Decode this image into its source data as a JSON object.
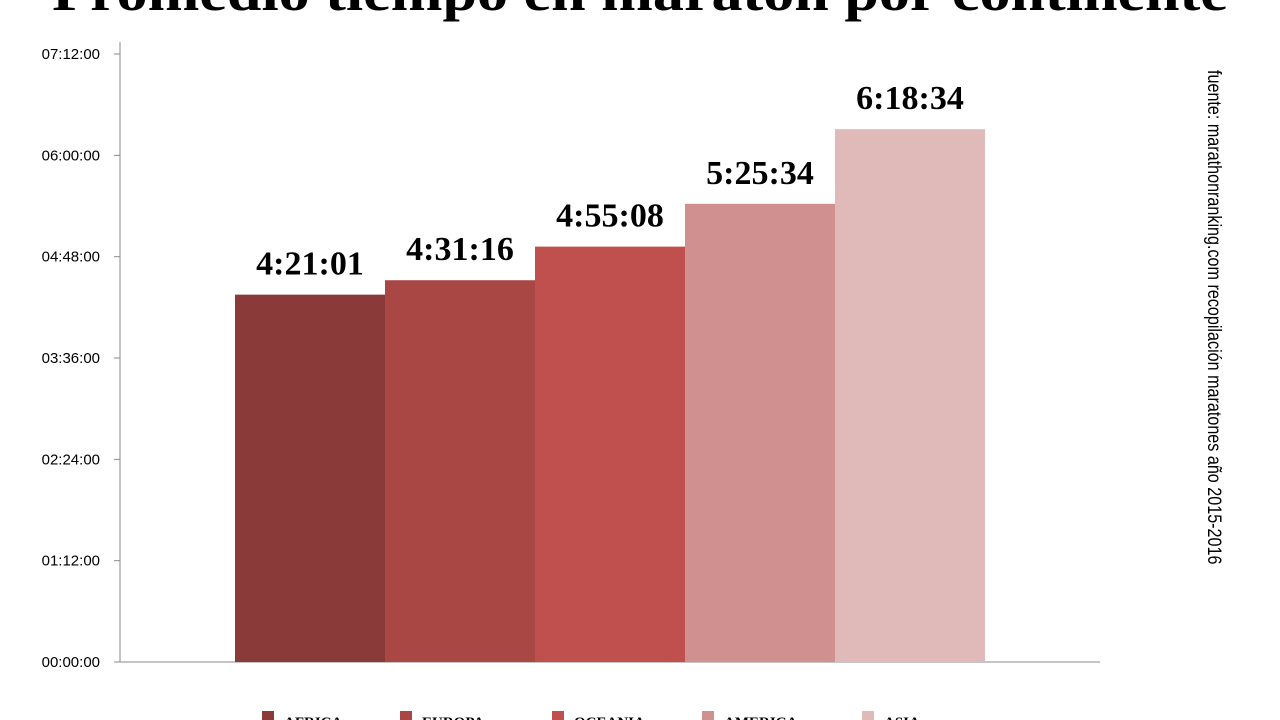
{
  "chart_data": {
    "type": "bar",
    "title": "Promedio tiempo en maraton por continente",
    "source": "fuente: marathonranking.com recopilación maratones año 2015-2016",
    "categories": [
      "AFRICA",
      "EUROPA",
      "OCEANIA",
      "AMERICA",
      "ASIA"
    ],
    "values": [
      15661,
      16276,
      17708,
      19534,
      22714
    ],
    "value_labels": [
      "4:21:01",
      "4:31:16",
      "4:55:08",
      "5:25:34",
      "6:18:34"
    ],
    "colors": [
      "#8b3a3a",
      "#a94744",
      "#c0504d",
      "#d09090",
      "#e0b9b9"
    ],
    "ylim": [
      0,
      25920
    ],
    "yticks": [
      {
        "value": 0,
        "label": "00:00:00"
      },
      {
        "value": 4320,
        "label": "01:12:00"
      },
      {
        "value": 8640,
        "label": "02:24:00"
      },
      {
        "value": 12960,
        "label": "03:36:00"
      },
      {
        "value": 17280,
        "label": "04:48:00"
      },
      {
        "value": 21600,
        "label": "06:00:00"
      },
      {
        "value": 25920,
        "label": "07:12:00"
      }
    ],
    "legend": "bottom"
  }
}
